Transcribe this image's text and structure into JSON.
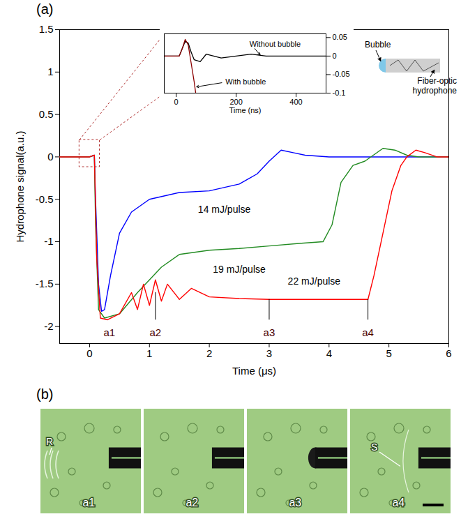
{
  "chart_data": [
    {
      "type": "line",
      "panel": "(a)",
      "x_label": "Time (μs)",
      "y_label": "Hydrophone signal(a.u.)",
      "xlim": [
        -0.5,
        6
      ],
      "xticks": [
        0,
        1,
        2,
        3,
        4,
        5,
        6
      ],
      "ylim": [
        -2.2,
        1.5
      ],
      "yticks": [
        -2,
        -1.5,
        -1,
        -0.5,
        0,
        0.5,
        1,
        1.5
      ],
      "series": [
        {
          "name": "14 mJ/pulse",
          "color": "#0000ff",
          "x": [
            -0.5,
            0,
            0.08,
            0.1,
            0.15,
            0.2,
            0.25,
            0.35,
            0.5,
            0.7,
            1,
            1.5,
            2,
            2.5,
            2.8,
            3,
            3.2,
            3.4,
            3.6,
            4,
            6
          ],
          "values": [
            0,
            0,
            0.02,
            -0.5,
            -1.5,
            -1.82,
            -1.8,
            -1.4,
            -0.9,
            -0.65,
            -0.5,
            -0.42,
            -0.4,
            -0.32,
            -0.2,
            -0.05,
            0.08,
            0.05,
            0.02,
            0,
            0
          ]
        },
        {
          "name": "19 mJ/pulse",
          "color": "#228b22",
          "x": [
            -0.5,
            0,
            0.08,
            0.1,
            0.15,
            0.25,
            0.5,
            0.8,
            1.2,
            1.5,
            2,
            2.5,
            3,
            3.5,
            3.9,
            4.05,
            4.2,
            4.4,
            4.6,
            4.9,
            5.1,
            5.3,
            5.5,
            6
          ],
          "values": [
            0,
            0,
            0.02,
            -0.8,
            -1.8,
            -1.9,
            -1.85,
            -1.6,
            -1.3,
            -1.15,
            -1.1,
            -1.08,
            -1.05,
            -1.02,
            -1,
            -0.8,
            -0.3,
            -0.1,
            -0.05,
            0.1,
            0.08,
            0.02,
            0,
            0
          ]
        },
        {
          "name": "22 mJ/pulse",
          "color": "#ff0000",
          "x": [
            -0.5,
            0,
            0.08,
            0.12,
            0.18,
            0.3,
            0.5,
            0.7,
            0.8,
            0.9,
            1,
            1.1,
            1.2,
            1.3,
            1.5,
            1.7,
            2,
            2.5,
            3,
            4,
            4.65,
            4.75,
            4.9,
            5.05,
            5.2,
            5.3,
            5.45,
            5.6,
            5.8,
            6
          ],
          "values": [
            0,
            0,
            0.02,
            -1.2,
            -1.9,
            -1.92,
            -1.85,
            -1.6,
            -1.8,
            -1.5,
            -1.75,
            -1.45,
            -1.7,
            -1.5,
            -1.68,
            -1.55,
            -1.65,
            -1.67,
            -1.68,
            -1.68,
            -1.68,
            -1.4,
            -0.9,
            -0.4,
            -0.1,
            0,
            0.08,
            0.05,
            0,
            0
          ]
        }
      ],
      "annotations": [
        {
          "text": "a1",
          "x": 0.33
        },
        {
          "text": "a2",
          "x": 1.1,
          "y": -1.6
        },
        {
          "text": "a3",
          "x": 3,
          "y": -1.68
        },
        {
          "text": "a4",
          "x": 4.65,
          "y": -1.68
        }
      ]
    },
    {
      "type": "line",
      "x_label": "Time (ns)",
      "xlim": [
        -40,
        500
      ],
      "xticks": [
        0,
        200,
        400
      ],
      "ylim": [
        -0.1,
        0.06
      ],
      "yticks": [
        -0.1,
        -0.05,
        0,
        0.05
      ],
      "series": [
        {
          "name": "Without bubble",
          "color": "#000000",
          "x": [
            -40,
            10,
            20,
            30,
            40,
            50,
            60,
            80,
            100,
            150,
            200,
            250,
            300,
            400,
            500
          ],
          "values": [
            0,
            0,
            0.02,
            0.04,
            0.035,
            0.01,
            -0.01,
            -0.015,
            0.005,
            -0.005,
            0,
            0.005,
            0,
            0,
            0
          ]
        },
        {
          "name": "With bubble",
          "color": "#8b0000",
          "x": [
            -40,
            10,
            20,
            30,
            40,
            50,
            60,
            65
          ],
          "values": [
            0,
            0,
            0.02,
            0.045,
            0.03,
            -0.02,
            -0.07,
            -0.1
          ]
        }
      ]
    }
  ],
  "schematic": {
    "bubble_label": "Bubble",
    "fiber_label": "Fiber-optic hydrophone"
  },
  "panel_b": {
    "panel": "(b)",
    "frames": [
      {
        "label": "a1",
        "marker": "R"
      },
      {
        "label": "a2"
      },
      {
        "label": "a3"
      },
      {
        "label": "a4",
        "marker": "S"
      }
    ]
  }
}
